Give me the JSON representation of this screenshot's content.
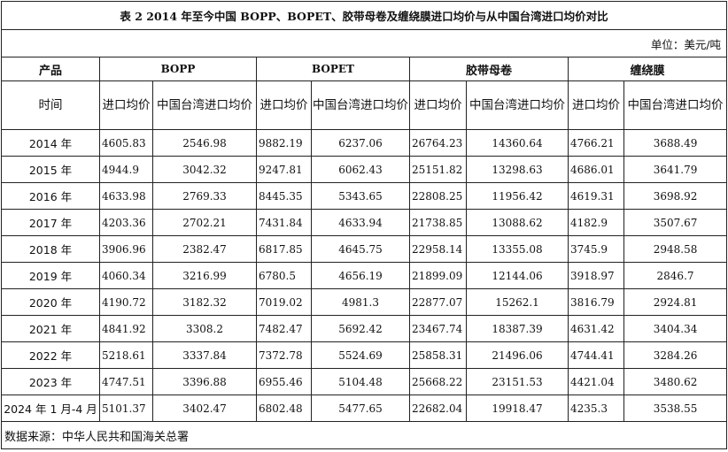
{
  "title": "表 2 2014 年至今中国 BOPP、BOPET、胶带母卷及缠绕膜进口均价与从中国台湾进口均价对比",
  "unit": "单位：美元/吨",
  "header": {
    "product_label": "产品",
    "time_label": "时间",
    "products": [
      "BOPP",
      "BOPET",
      "胶带母卷",
      "缠绕膜"
    ],
    "col_import_avg": "进口均价",
    "col_taiwan_avg": "中国台湾进口均价"
  },
  "rows": [
    {
      "year": "2014 年",
      "v": [
        "4605.83",
        "2546.98",
        "9882.19",
        "6237.06",
        "26764.23",
        "14360.64",
        "4766.21",
        "3688.49"
      ]
    },
    {
      "year": "2015 年",
      "v": [
        "4944.9",
        "3042.32",
        "9247.81",
        "6062.43",
        "25151.82",
        "13298.63",
        "4686.01",
        "3641.79"
      ]
    },
    {
      "year": "2016 年",
      "v": [
        "4633.98",
        "2769.33",
        "8445.35",
        "5343.65",
        "22808.25",
        "11956.42",
        "4619.31",
        "3698.92"
      ]
    },
    {
      "year": "2017 年",
      "v": [
        "4203.36",
        "2702.21",
        "7431.84",
        "4633.94",
        "21738.85",
        "13088.62",
        "4182.9",
        "3507.67"
      ]
    },
    {
      "year": "2018 年",
      "v": [
        "3906.96",
        "2382.47",
        "6817.85",
        "4645.75",
        "22958.14",
        "13355.08",
        "3745.9",
        "2948.58"
      ]
    },
    {
      "year": "2019 年",
      "v": [
        "4060.34",
        "3216.99",
        "6780.5",
        "4656.19",
        "21899.09",
        "12144.06",
        "3918.97",
        "2846.7"
      ]
    },
    {
      "year": "2020 年",
      "v": [
        "4190.72",
        "3182.32",
        "7019.02",
        "4981.3",
        "22877.07",
        "15262.1",
        "3816.79",
        "2924.81"
      ]
    },
    {
      "year": "2021 年",
      "v": [
        "4841.92",
        "3308.2",
        "7482.47",
        "5692.42",
        "23467.74",
        "18387.39",
        "4631.42",
        "3404.34"
      ]
    },
    {
      "year": "2022 年",
      "v": [
        "5218.61",
        "3337.84",
        "7372.78",
        "5524.69",
        "25858.31",
        "21496.06",
        "4744.41",
        "3284.26"
      ]
    },
    {
      "year": "2023 年",
      "v": [
        "4747.51",
        "3396.88",
        "6955.46",
        "5104.48",
        "25668.22",
        "23151.53",
        "4421.04",
        "3480.62"
      ]
    },
    {
      "year": "2024 年 1 月-4 月",
      "v": [
        "5101.37",
        "3402.47",
        "6802.48",
        "5477.65",
        "22682.04",
        "19918.47",
        "4235.3",
        "3538.55"
      ]
    }
  ],
  "source": "数据来源：中华人民共和国海关总署"
}
